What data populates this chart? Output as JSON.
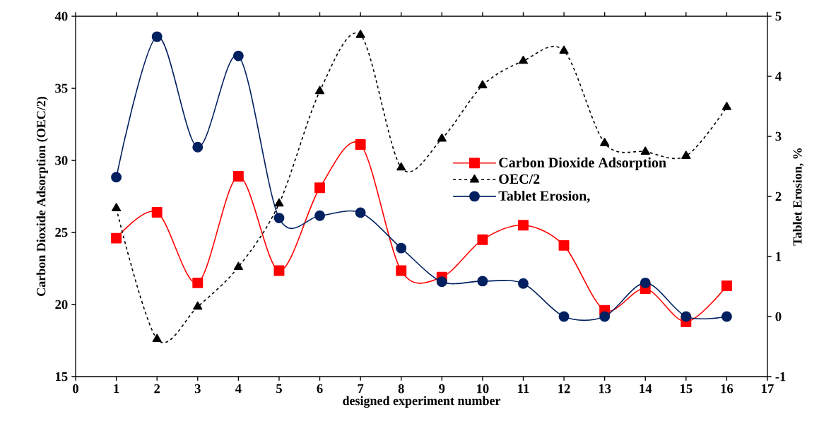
{
  "chart_data": {
    "type": "line",
    "xlabel": "designed experiment number",
    "ylabel": "Carbon Dioxide Adsorption (OEC/2)",
    "y2label": "Tablet Erosion, %",
    "x": [
      1,
      2,
      3,
      4,
      5,
      6,
      7,
      8,
      9,
      10,
      11,
      12,
      13,
      14,
      15,
      16
    ],
    "series": [
      {
        "name": "Carbon Dioxide Adsorption",
        "color": "#ff0000",
        "marker": "square",
        "line_style": "solid",
        "values": [
          24.6,
          26.4,
          21.5,
          28.9,
          22.35,
          28.1,
          31.1,
          22.35,
          21.9,
          24.5,
          25.5,
          24.1,
          19.6,
          21.1,
          18.8,
          21.3
        ]
      },
      {
        "name": "OEC/2",
        "color": "#000000",
        "marker": "triangle",
        "line_style": "dashed",
        "values": [
          26.67,
          17.6,
          19.85,
          22.6,
          27.0,
          34.8,
          38.7,
          29.5,
          31.5,
          35.2,
          36.9,
          37.6,
          31.2,
          30.6,
          30.3,
          33.7
        ]
      },
      {
        "name": "Tablet Erosion,",
        "color": "#002060",
        "marker": "circle",
        "line_style": "solid",
        "axis": "y2",
        "values": [
          2.32,
          4.66,
          2.82,
          4.34,
          1.64,
          1.68,
          1.73,
          1.14,
          0.58,
          0.59,
          0.55,
          0.0,
          0.0,
          0.56,
          0.0,
          0.0
        ]
      }
    ],
    "xlim": [
      0,
      17
    ],
    "xticks": [
      0,
      1,
      2,
      3,
      4,
      5,
      6,
      7,
      8,
      9,
      10,
      11,
      12,
      13,
      14,
      15,
      16,
      17
    ],
    "ylim": [
      15,
      40
    ],
    "yticks": [
      15,
      20,
      25,
      30,
      35,
      40
    ],
    "y2lim": [
      -1,
      5
    ],
    "y2ticks": [
      -1,
      0,
      1,
      2,
      3,
      4,
      5
    ],
    "grid": false,
    "legend": "center right"
  }
}
